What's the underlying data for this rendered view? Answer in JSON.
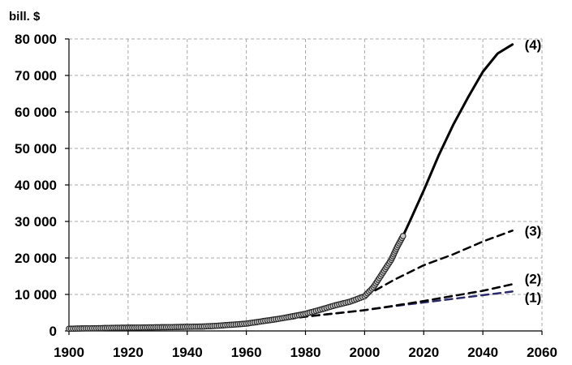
{
  "chart_data": {
    "type": "line",
    "ylabel": "bill. $",
    "xlim": [
      1900,
      2060
    ],
    "ylim": [
      0,
      80000
    ],
    "grid": true,
    "x_ticks": [
      1900,
      1920,
      1940,
      1960,
      1980,
      2000,
      2020,
      2040,
      2060
    ],
    "x_tick_labels": [
      "1900",
      "1920",
      "1940",
      "1960",
      "1980",
      "2000",
      "2020",
      "2040",
      "2060"
    ],
    "y_ticks": [
      0,
      10000,
      20000,
      30000,
      40000,
      50000,
      60000,
      70000,
      80000
    ],
    "y_tick_labels": [
      "0",
      "10 000",
      "20 000",
      "30 000",
      "40 000",
      "50 000",
      "60 000",
      "70 000",
      "80 000"
    ],
    "observed": {
      "x": [
        1900,
        1905,
        1910,
        1915,
        1920,
        1925,
        1930,
        1935,
        1940,
        1945,
        1950,
        1955,
        1960,
        1965,
        1970,
        1975,
        1980,
        1985,
        1990,
        1995,
        2000,
        2003,
        2005,
        2007,
        2009,
        2011,
        2013
      ],
      "y": [
        600,
        700,
        750,
        850,
        900,
        950,
        1000,
        1050,
        1150,
        1200,
        1400,
        1700,
        2000,
        2600,
        3200,
        3900,
        4700,
        5800,
        7000,
        8000,
        9500,
        12000,
        14500,
        17000,
        19500,
        23000,
        26000
      ],
      "marker": "circle"
    },
    "series": [
      {
        "name": "(1)",
        "style": "dashed",
        "color": "#2a2a6a",
        "x": [
          1970,
          1980,
          1990,
          2000,
          2010,
          2020,
          2030,
          2040,
          2050
        ],
        "y": [
          2800,
          3900,
          4800,
          5700,
          6800,
          7800,
          8800,
          9800,
          10800
        ]
      },
      {
        "name": "(2)",
        "style": "dashed",
        "color": "#000000",
        "x": [
          1970,
          1980,
          1990,
          2000,
          2010,
          2020,
          2030,
          2040,
          2050
        ],
        "y": [
          2800,
          3900,
          4800,
          5700,
          6900,
          8200,
          9600,
          11000,
          12800
        ]
      },
      {
        "name": "(3)",
        "style": "dashed",
        "color": "#000000",
        "x": [
          2000,
          2010,
          2020,
          2030,
          2040,
          2050
        ],
        "y": [
          9500,
          14000,
          18000,
          21000,
          24500,
          27500
        ]
      },
      {
        "name": "(4)",
        "style": "solid",
        "color": "#000000",
        "x": [
          2000,
          2005,
          2010,
          2013,
          2015,
          2020,
          2025,
          2030,
          2035,
          2040,
          2045,
          2050
        ],
        "y": [
          9500,
          14500,
          20500,
          26000,
          29500,
          38500,
          48000,
          56500,
          64000,
          71000,
          76000,
          78500
        ]
      }
    ]
  }
}
